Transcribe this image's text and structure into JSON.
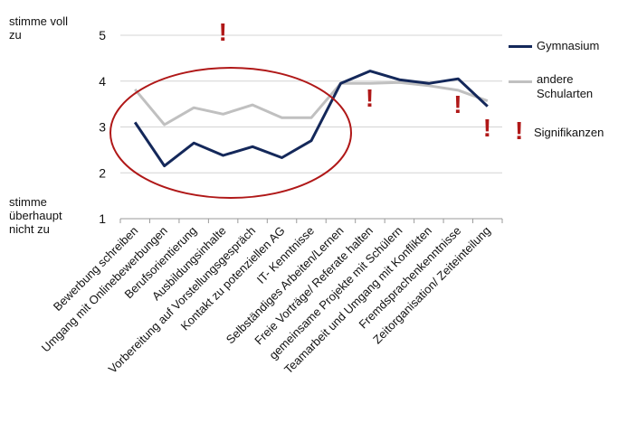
{
  "chart_data": {
    "type": "line",
    "categories": [
      "Bewerbung schreiben",
      "Umgang mit Onlinebewerbungen",
      "Berufsorientierung",
      "Ausbildungsinhalte",
      "Vorbereitung auf Vorstellungsgespräch",
      "Kontakt zu potenziellen AG",
      "IT- Kenntnisse",
      "Selbständiges Arbeiten/Lernen",
      "Freie Vorträge/ Referate halten",
      "gemeinsame Projekte mit Schülern",
      "Teamarbeit und Umgang mit Konflikten",
      "Fremdsprachenkenntnisse",
      "Zeitorganisation/ Zeiteinteilung"
    ],
    "series": [
      {
        "name": "Gymnasium",
        "color": "#14285a",
        "values": [
          3.1,
          2.15,
          2.65,
          2.38,
          2.57,
          2.33,
          2.7,
          3.95,
          4.22,
          4.03,
          3.95,
          4.05,
          3.45
        ]
      },
      {
        "name": "andere Schularten",
        "color": "#c0c0c0",
        "values": [
          3.82,
          3.05,
          3.42,
          3.28,
          3.48,
          3.2,
          3.2,
          3.95,
          3.95,
          3.97,
          3.9,
          3.8,
          3.57
        ]
      }
    ],
    "ylim": [
      1,
      5
    ],
    "yticks": [
      1,
      2,
      3,
      4,
      5
    ],
    "ylabel_top": "stimme voll zu",
    "ylabel_bottom": "stimme überhaupt nicht zu",
    "grid": true,
    "legend_position": "right",
    "significance_label": "Signifikanzen",
    "significance_mark": "!",
    "significance_color": "#b01818",
    "significance_categories": [
      3,
      8,
      11,
      12
    ],
    "ellipse_color": "#b01818"
  }
}
